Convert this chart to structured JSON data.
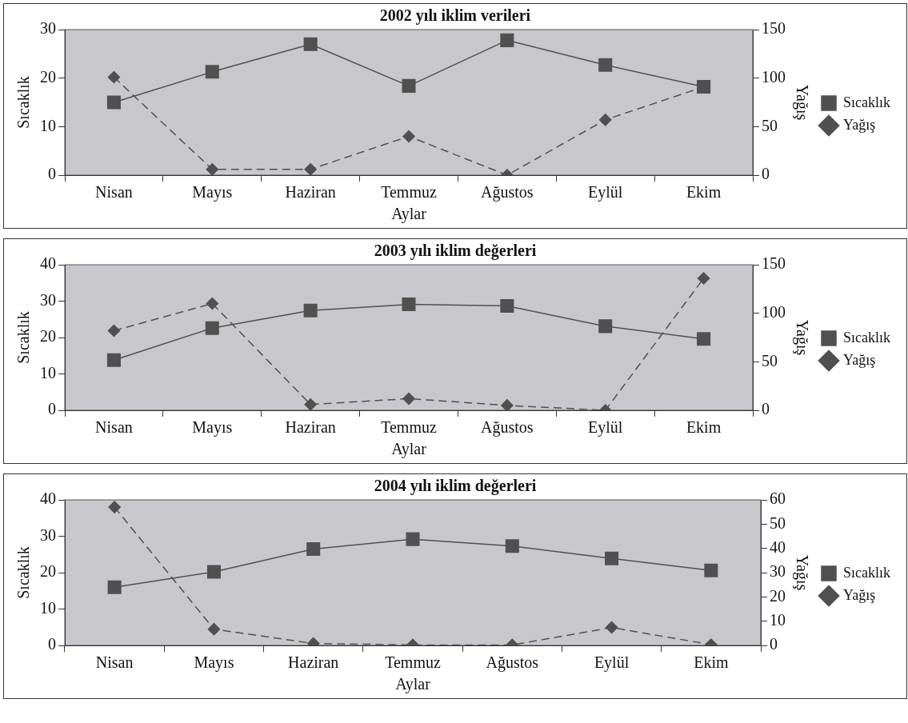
{
  "chart_data": [
    {
      "type": "line",
      "title": "2002 yılı iklim verileri",
      "xlabel": "Aylar",
      "ylabel": "Sıcaklık",
      "y2label": "Yağış",
      "categories": [
        "Nisan",
        "Mayıs",
        "Haziran",
        "Temmuz",
        "Ağustos",
        "Eylül",
        "Ekim"
      ],
      "series": [
        {
          "name": "Sıcaklık",
          "color": "#505050",
          "marker": "square",
          "line_style": "solid",
          "values": [
            15,
            21.3,
            27,
            18.4,
            27.8,
            22.7,
            18.2
          ]
        },
        {
          "name": "Yağış",
          "color": "#505050",
          "marker": "diamond",
          "line_style": "dashed",
          "axis": "y2",
          "values": [
            101,
            6,
            6,
            40,
            0,
            57,
            91
          ]
        }
      ],
      "ylim": [
        0,
        30
      ],
      "yticks": [
        0,
        10,
        20,
        30
      ],
      "y2lim": [
        0,
        150
      ],
      "y2ticks": [
        0,
        50,
        100,
        150
      ],
      "grid": false,
      "legend": "right"
    },
    {
      "type": "line",
      "title": "2003 yılı iklim değerleri",
      "xlabel": "Aylar",
      "ylabel": "Sıcaklık",
      "y2label": "Yağış",
      "categories": [
        "Nisan",
        "Mayıs",
        "Haziran",
        "Temmuz",
        "Ağustos",
        "Eylül",
        "Ekim"
      ],
      "series": [
        {
          "name": "Sıcaklık",
          "color": "#505050",
          "marker": "square",
          "line_style": "solid",
          "values": [
            13.8,
            22.6,
            27.4,
            29.1,
            28.7,
            23.1,
            19.6
          ]
        },
        {
          "name": "Yağış",
          "color": "#505050",
          "marker": "diamond",
          "line_style": "dashed",
          "axis": "y2",
          "values": [
            82,
            110,
            6,
            12,
            5,
            0,
            136
          ]
        }
      ],
      "ylim": [
        0,
        40
      ],
      "yticks": [
        0,
        10,
        20,
        30,
        40
      ],
      "y2lim": [
        0,
        150
      ],
      "y2ticks": [
        0,
        50,
        100,
        150
      ],
      "grid": false,
      "legend": "right"
    },
    {
      "type": "line",
      "title": "2004 yılı iklim değerleri",
      "xlabel": "Aylar",
      "ylabel": "Sıcaklık",
      "y2label": "Yağış",
      "categories": [
        "Nisan",
        "Mayıs",
        "Haziran",
        "Temmuz",
        "Ağustos",
        "Eylül",
        "Ekim"
      ],
      "series": [
        {
          "name": "Sıcaklık",
          "color": "#505050",
          "marker": "square",
          "line_style": "solid",
          "values": [
            16,
            20.2,
            26.5,
            29.2,
            27.3,
            23.9,
            20.6
          ]
        },
        {
          "name": "Yağış",
          "color": "#505050",
          "marker": "diamond",
          "line_style": "dashed",
          "axis": "y2",
          "values": [
            57,
            6.7,
            0.8,
            0.2,
            0.2,
            7.4,
            0.3
          ]
        }
      ],
      "ylim": [
        0,
        40
      ],
      "yticks": [
        0,
        10,
        20,
        30,
        40
      ],
      "y2lim": [
        0,
        60
      ],
      "y2ticks": [
        0,
        10,
        20,
        30,
        40,
        50,
        60
      ],
      "grid": false,
      "legend": "right"
    }
  ]
}
